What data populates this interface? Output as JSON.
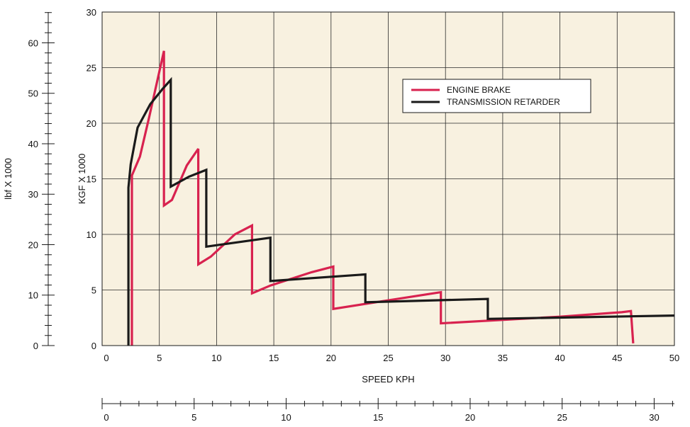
{
  "chart_data": {
    "type": "line",
    "title": "",
    "xlabel": "SPEED KPH",
    "ylabel": "KGF X 1000",
    "y2label": "lbf X 1000",
    "xlim": [
      0,
      50
    ],
    "ylim": [
      0,
      30
    ],
    "x_ticks": [
      0,
      5,
      10,
      15,
      20,
      25,
      30,
      35,
      40,
      45,
      50
    ],
    "y_ticks": [
      0,
      5,
      10,
      15,
      20,
      25,
      30
    ],
    "secondary_y_axis": {
      "label": "lbf X 1000",
      "ticks": [
        0,
        10,
        20,
        30,
        40,
        50,
        60
      ],
      "range": [
        0,
        66.1
      ]
    },
    "secondary_x_axis": {
      "ticks": [
        0,
        5,
        10,
        15,
        20,
        25,
        30
      ],
      "range": [
        0,
        31.1
      ]
    },
    "grid": true,
    "legend": {
      "placement": "top-right"
    },
    "plot_background": "#f8f1e0",
    "series": [
      {
        "name": "ENGINE BRAKE",
        "color": "#d8224f",
        "points": [
          [
            2.6,
            0
          ],
          [
            2.6,
            15.3
          ],
          [
            3.3,
            17
          ],
          [
            4.1,
            20.5
          ],
          [
            5.4,
            26.5
          ],
          [
            5.4,
            12.6
          ],
          [
            6.1,
            13.1
          ],
          [
            7.4,
            16.2
          ],
          [
            8.4,
            17.7
          ],
          [
            8.4,
            7.3
          ],
          [
            9.5,
            8
          ],
          [
            11.6,
            10
          ],
          [
            13.1,
            10.8
          ],
          [
            13.1,
            4.7
          ],
          [
            14.7,
            5.4
          ],
          [
            18.3,
            6.6
          ],
          [
            20.2,
            7.1
          ],
          [
            20.2,
            3.3
          ],
          [
            29.6,
            4.8
          ],
          [
            29.6,
            2
          ],
          [
            40,
            2.6
          ],
          [
            45.4,
            3
          ],
          [
            46.2,
            3.1
          ],
          [
            46.4,
            0.2
          ]
        ]
      },
      {
        "name": "TRANSMISSION RETARDER",
        "color": "#1a1a1a",
        "points": [
          [
            2.3,
            0
          ],
          [
            2.3,
            14.2
          ],
          [
            2.5,
            16.3
          ],
          [
            3.1,
            19.6
          ],
          [
            4.2,
            21.7
          ],
          [
            5.3,
            23.1
          ],
          [
            6.0,
            23.9
          ],
          [
            6.0,
            14.3
          ],
          [
            7.6,
            15.2
          ],
          [
            9.1,
            15.8
          ],
          [
            9.1,
            8.9
          ],
          [
            14.7,
            9.7
          ],
          [
            14.7,
            5.8
          ],
          [
            23.0,
            6.4
          ],
          [
            23.0,
            3.9
          ],
          [
            33.7,
            4.2
          ],
          [
            33.7,
            2.4
          ],
          [
            50,
            2.7
          ]
        ]
      }
    ]
  }
}
